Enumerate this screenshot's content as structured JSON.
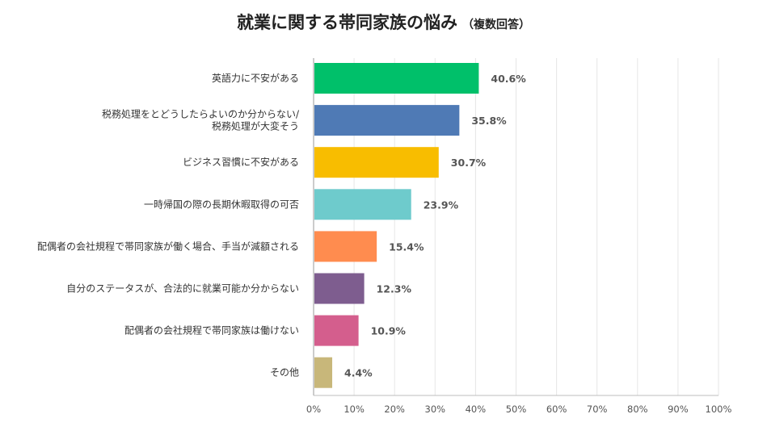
{
  "title": "就業に関する帯同家族の悩み",
  "subtitle": "（複数回答）",
  "chart_data": {
    "type": "bar",
    "orientation": "horizontal",
    "title": "就業に関する帯同家族の悩み（複数回答）",
    "categories": [
      [
        "英語力に不安がある"
      ],
      [
        "税務処理をとどうしたらよいのか分からない/",
        "税務処理が大変そう"
      ],
      [
        "ビジネス習慣に不安がある"
      ],
      [
        "一時帰国の際の長期休暇取得の可否"
      ],
      [
        "配偶者の会社規程で帯同家族が働く場合、手当が減額される"
      ],
      [
        "自分のステータスが、合法的に就業可能か分からない"
      ],
      [
        "配偶者の会社規程で帯同家族は働けない"
      ],
      [
        "その他"
      ]
    ],
    "values": [
      40.6,
      35.8,
      30.7,
      23.9,
      15.4,
      12.3,
      10.9,
      4.4
    ],
    "value_labels": [
      "40.6%",
      "35.8%",
      "30.7%",
      "23.9%",
      "15.4%",
      "12.3%",
      "10.9%",
      "4.4%"
    ],
    "colors": [
      "#00c06a",
      "#4f7ab5",
      "#f8bd00",
      "#6ecbcc",
      "#ff8c4f",
      "#7e5d8f",
      "#d45e8d",
      "#c8b77a"
    ],
    "xlim": [
      0,
      100
    ],
    "xticks": [
      "0%",
      "10%",
      "20%",
      "30%",
      "40%",
      "50%",
      "60%",
      "70%",
      "80%",
      "90%",
      "100%"
    ],
    "grid": true,
    "legend": "none"
  }
}
